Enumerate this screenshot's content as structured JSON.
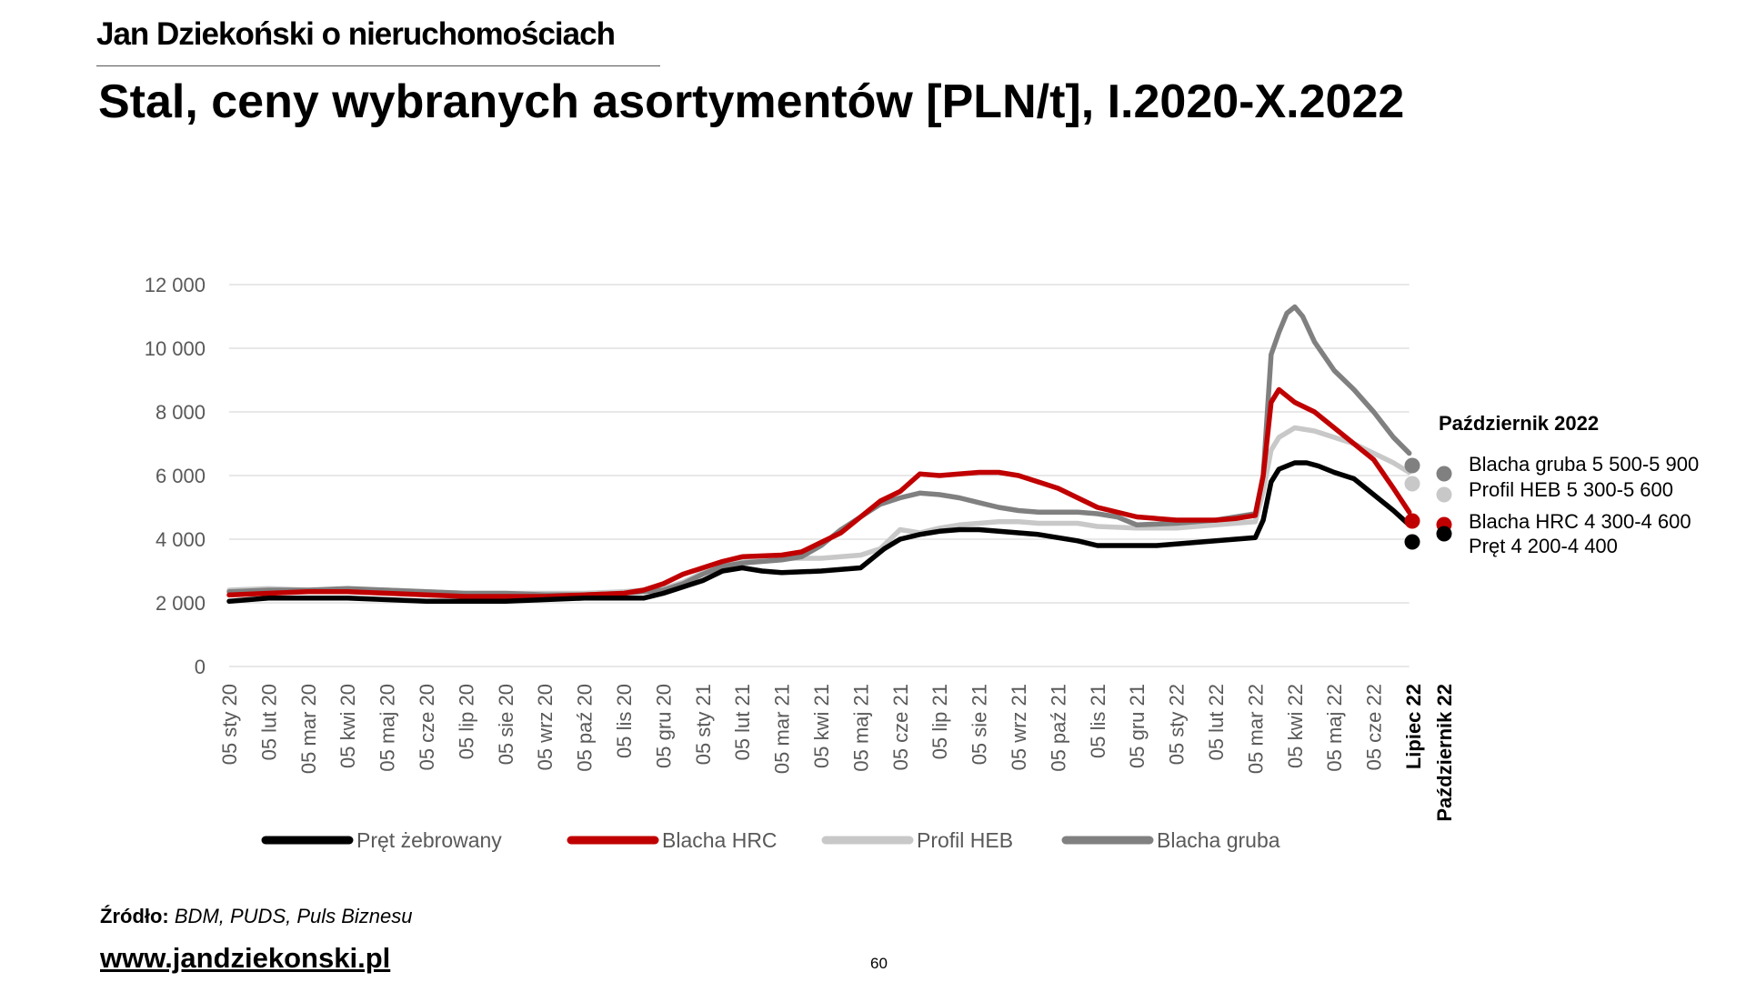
{
  "header": {
    "brand": "Jan Dziekoński o nieruchomościach",
    "title": "Stal, ceny wybranych asortymentów [PLN/t], I.2020-X.2022"
  },
  "footer": {
    "source_label": "Źródło:",
    "source_text": " BDM, PUDS, Puls Biznesu",
    "url": "www.jandziekonski.pl",
    "page_number": "60"
  },
  "side_legend": {
    "title": "Październik 2022",
    "column_labels": [
      "Lipiec 22",
      "Październik 22"
    ],
    "items": [
      {
        "label": "Blacha gruba 5 500-5 900",
        "color": "#808080",
        "july": 6100,
        "october": 5700
      },
      {
        "label": "Profil HEB 5 300-5 600",
        "color": "#c8c8c8",
        "july": 5700,
        "october": 5450
      },
      {
        "label": "Blacha HRC 4 300-4 600",
        "color": "#c00000",
        "july": 4550,
        "october": 4450
      },
      {
        "label": "Pręt 4 200-4 400",
        "color": "#000000",
        "july": 3950,
        "october": 4300
      }
    ]
  },
  "chart_data": {
    "type": "line",
    "title": "Stal, ceny wybranych asortymentów [PLN/t], I.2020-X.2022",
    "xlabel": "",
    "ylabel": "",
    "ylim": [
      0,
      12000
    ],
    "yticks": [
      0,
      2000,
      4000,
      6000,
      8000,
      10000,
      12000
    ],
    "ytick_labels": [
      "0",
      "2 000",
      "4 000",
      "6 000",
      "8 000",
      "10 000",
      "12 000"
    ],
    "grid": true,
    "legend_position": "bottom",
    "categories": [
      "05 sty 20",
      "05 lut 20",
      "05 mar 20",
      "05 kwi 20",
      "05 maj 20",
      "05 cze 20",
      "05 lip 20",
      "05 sie 20",
      "05 wrz 20",
      "05 paź 20",
      "05 lis 20",
      "05 gru 20",
      "05 sty 21",
      "05 lut 21",
      "05 mar 21",
      "05 kwi 21",
      "05 maj 21",
      "05 cze 21",
      "05 lip 21",
      "05 sie 21",
      "05 wrz 21",
      "05 paź 21",
      "05 lis 21",
      "05 gru 21",
      "05 sty 22",
      "05 lut 22",
      "05 mar 22",
      "05 kwi 22",
      "05 maj 22",
      "05 cze 22"
    ],
    "series": [
      {
        "name": "Pręt żebrowany",
        "color": "#000000",
        "x": [
          0,
          0.5,
          1,
          2,
          3,
          4,
          5,
          6,
          7,
          8,
          9,
          10,
          10.5,
          11,
          11.5,
          12,
          12.5,
          13,
          13.5,
          14,
          15,
          15.5,
          16,
          16.3,
          16.6,
          17,
          17.5,
          18,
          18.5,
          19,
          19.5,
          20,
          20.5,
          21,
          21.5,
          22,
          22.5,
          23,
          23.5,
          24,
          24.5,
          25,
          25.5,
          26,
          26.2,
          26.4,
          26.6,
          27,
          27.3,
          27.6,
          28,
          28.5,
          29,
          29.5,
          29.9
        ],
        "y": [
          2050,
          2100,
          2150,
          2150,
          2150,
          2100,
          2050,
          2050,
          2050,
          2100,
          2150,
          2150,
          2150,
          2300,
          2500,
          2700,
          3000,
          3100,
          3000,
          2950,
          3000,
          3050,
          3100,
          3400,
          3700,
          4000,
          4150,
          4250,
          4300,
          4300,
          4250,
          4200,
          4150,
          4050,
          3950,
          3800,
          3800,
          3800,
          3800,
          3850,
          3900,
          3950,
          4000,
          4050,
          4600,
          5800,
          6200,
          6400,
          6400,
          6300,
          6100,
          5900,
          5400,
          4900,
          4450
        ]
      },
      {
        "name": "Blacha HRC",
        "color": "#c00000",
        "x": [
          0,
          1,
          2,
          3,
          4,
          5,
          6,
          7,
          8,
          9,
          10,
          10.5,
          11,
          11.5,
          12,
          12.5,
          13,
          14,
          14.5,
          15,
          15.5,
          16,
          16.5,
          17,
          17.5,
          18,
          18.5,
          19,
          19.5,
          20,
          20.5,
          21,
          21.5,
          22,
          23,
          24,
          25,
          25.5,
          26,
          26.2,
          26.4,
          26.6,
          27,
          27.5,
          28,
          28.5,
          29,
          29.5,
          29.9
        ],
        "y": [
          2250,
          2300,
          2350,
          2350,
          2300,
          2250,
          2200,
          2200,
          2200,
          2250,
          2300,
          2400,
          2600,
          2900,
          3100,
          3300,
          3450,
          3500,
          3600,
          3900,
          4200,
          4700,
          5200,
          5500,
          6050,
          6000,
          6050,
          6100,
          6100,
          6000,
          5800,
          5600,
          5300,
          5000,
          4700,
          4600,
          4600,
          4650,
          4750,
          6000,
          8300,
          8700,
          8300,
          8000,
          7500,
          7000,
          6500,
          5600,
          4850
        ]
      },
      {
        "name": "Profil HEB",
        "color": "#c8c8c8",
        "x": [
          0,
          1,
          2,
          3,
          4,
          5,
          6,
          7,
          8,
          9,
          10,
          11,
          11.5,
          12,
          12.5,
          13,
          14,
          15,
          16,
          16.5,
          17,
          17.5,
          18,
          18.5,
          19,
          19.5,
          20,
          20.5,
          21,
          21.5,
          22,
          23,
          24,
          25,
          25.5,
          26,
          26.2,
          26.4,
          26.6,
          27,
          27.5,
          28,
          28.5,
          29,
          29.5,
          29.9
        ],
        "y": [
          2400,
          2450,
          2400,
          2400,
          2400,
          2350,
          2300,
          2300,
          2300,
          2300,
          2350,
          2450,
          2650,
          2950,
          3150,
          3300,
          3400,
          3400,
          3500,
          3700,
          4300,
          4200,
          4350,
          4450,
          4500,
          4550,
          4550,
          4500,
          4500,
          4500,
          4400,
          4350,
          4350,
          4450,
          4500,
          4550,
          5500,
          6800,
          7200,
          7500,
          7400,
          7200,
          7000,
          6700,
          6400,
          6100
        ]
      },
      {
        "name": "Blacha gruba",
        "color": "#808080",
        "x": [
          0,
          1,
          2,
          3,
          4,
          5,
          6,
          7,
          8,
          9,
          10,
          11,
          11.5,
          12,
          12.5,
          13,
          14,
          14.5,
          15,
          15.5,
          16,
          16.5,
          17,
          17.5,
          18,
          18.5,
          19,
          19.5,
          20,
          20.5,
          21,
          21.5,
          22,
          22.5,
          23,
          24,
          25,
          25.5,
          26,
          26.2,
          26.4,
          26.6,
          26.8,
          27,
          27.2,
          27.5,
          28,
          28.5,
          29,
          29.5,
          29.9
        ],
        "y": [
          2350,
          2400,
          2400,
          2450,
          2400,
          2350,
          2300,
          2300,
          2250,
          2250,
          2300,
          2400,
          2600,
          2900,
          3150,
          3250,
          3350,
          3450,
          3800,
          4300,
          4700,
          5100,
          5300,
          5450,
          5400,
          5300,
          5150,
          5000,
          4900,
          4850,
          4850,
          4850,
          4800,
          4700,
          4450,
          4500,
          4600,
          4700,
          4800,
          6000,
          9800,
          10500,
          11100,
          11300,
          11000,
          10200,
          9300,
          8700,
          8000,
          7200,
          6700
        ]
      }
    ]
  }
}
